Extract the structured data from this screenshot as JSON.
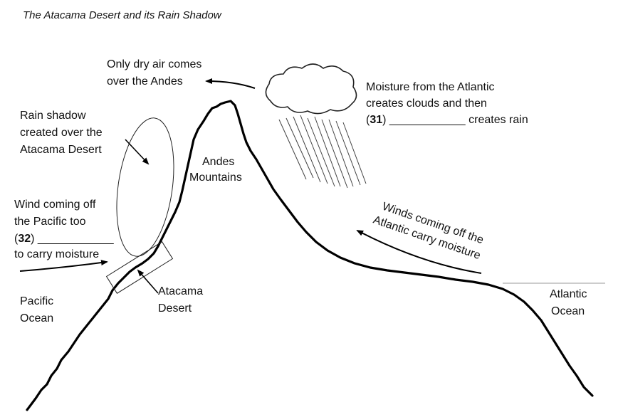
{
  "title": "The Atacama Desert and its Rain Shadow",
  "labels": {
    "dry_air_1": "Only dry air comes",
    "dry_air_2": "over the Andes",
    "moisture_1": "Moisture from the Atlantic",
    "moisture_2": "creates clouds and then",
    "q31_number": "31",
    "q31_tail": "____________ creates rain",
    "rain_shadow_1": "Rain shadow",
    "rain_shadow_2": "created over the",
    "rain_shadow_3": "Atacama Desert",
    "andes_1": "Andes",
    "andes_2": "Mountains",
    "wind_pacific_1": "Wind coming off",
    "wind_pacific_2": "the Pacific too",
    "q32_number": "32",
    "q32_tail": "____________",
    "wind_pacific_3": "to carry moisture",
    "winds_atlantic_1": "Winds coming off the",
    "winds_atlantic_2": "Atlantic carry moisture",
    "pacific_1": "Pacific",
    "pacific_2": "Ocean",
    "atacama_1": "Atacama",
    "atacama_2": "Desert",
    "atlantic_1": "Atlantic",
    "atlantic_2": "Ocean"
  },
  "colors": {
    "ink": "#000000",
    "background": "#ffffff"
  }
}
